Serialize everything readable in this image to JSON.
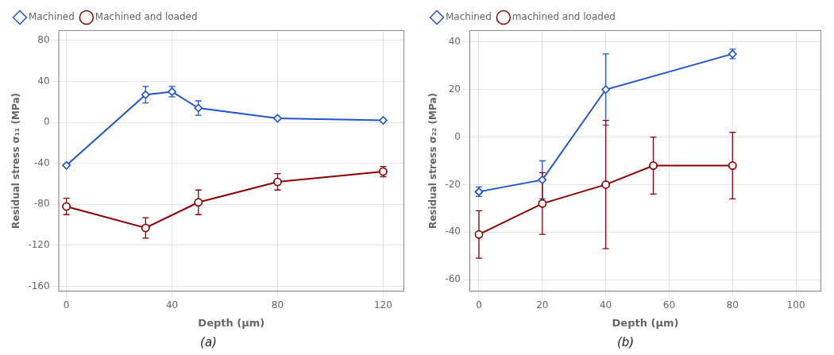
{
  "chart_data": [
    {
      "type": "line",
      "x_label": "Depth (μm)",
      "y_label": "Residual stress σ₁₁ (MPa)",
      "annotations": [
        "(a)"
      ],
      "series": [
        {
          "name": "Machined",
          "color": "#2255CC",
          "marker": "diamond",
          "line_style": "solid",
          "x": [
            0,
            30,
            40,
            50,
            80,
            120
          ],
          "values": [
            -42,
            27,
            30,
            14,
            4,
            2
          ],
          "yerr": [
            0,
            8,
            5,
            7,
            0,
            0
          ]
        },
        {
          "name": "Machined and loaded",
          "color": "#8B0000",
          "marker": "circle",
          "line_style": "solid",
          "x": [
            0,
            30,
            50,
            80,
            120
          ],
          "values": [
            -82,
            -103,
            -78,
            -58,
            -48
          ],
          "yerr": [
            8,
            10,
            12,
            8,
            5
          ]
        }
      ],
      "xlim": [
        -3,
        128
      ],
      "xticks": [
        0,
        40,
        80,
        120
      ],
      "ylim": [
        -165,
        90
      ],
      "yticks": [
        -160,
        -120,
        -80,
        -40,
        0,
        40,
        80
      ],
      "grid": true,
      "legend": "upper left"
    },
    {
      "type": "line",
      "x_label": "Depth (μm)",
      "y_label": "Residual stress σ₂₂ (MPa)",
      "annotations": [
        "(b)"
      ],
      "series": [
        {
          "name": "Machined",
          "color": "#2255CC",
          "marker": "diamond",
          "line_style": "solid",
          "x": [
            0,
            20,
            40,
            80
          ],
          "values": [
            -23,
            -18,
            20,
            35
          ],
          "yerr": [
            2,
            8,
            15,
            2
          ]
        },
        {
          "name": "machined and loaded",
          "color": "#8B0000",
          "marker": "circle",
          "line_style": "solid",
          "x": [
            0,
            20,
            40,
            55,
            80
          ],
          "values": [
            -41,
            -28,
            -20,
            -12,
            -12
          ],
          "yerr": [
            10,
            13,
            27,
            12,
            14
          ]
        }
      ],
      "xlim": [
        -3,
        108
      ],
      "xticks": [
        0,
        20,
        40,
        60,
        80,
        100
      ],
      "ylim": [
        -65,
        45
      ],
      "yticks": [
        -60,
        -40,
        -20,
        0,
        20,
        40
      ],
      "grid": true,
      "legend": "upper left"
    }
  ]
}
